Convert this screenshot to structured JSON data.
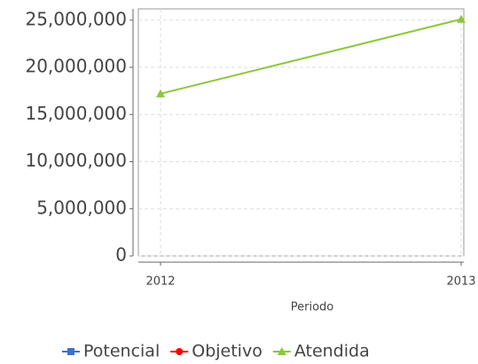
{
  "chart_data": {
    "type": "line",
    "x_label": "Periodo",
    "categories": [
      "2012",
      "2013"
    ],
    "series": [
      {
        "name": "Potencial",
        "color": "#3f6fd1",
        "marker": "square",
        "values": [
          null,
          null
        ]
      },
      {
        "name": "Objetivo",
        "color": "#ff0000",
        "marker": "circle",
        "values": [
          null,
          null
        ]
      },
      {
        "name": "Atendida",
        "color": "#8cc63f",
        "marker": "triangle",
        "values": [
          17200000,
          25100000
        ]
      }
    ],
    "ylim": [
      0,
      26200000
    ],
    "yticks": [
      0,
      {
        "value": 5000000,
        "label": "5,000,000"
      },
      {
        "value": 10000000,
        "label": "10,000,000"
      },
      {
        "value": 15000000,
        "label": "15,000,000"
      },
      {
        "value": 20000000,
        "label": "20,000,000"
      },
      {
        "value": 25000000,
        "label": "25,000,000"
      }
    ],
    "grid": true
  }
}
